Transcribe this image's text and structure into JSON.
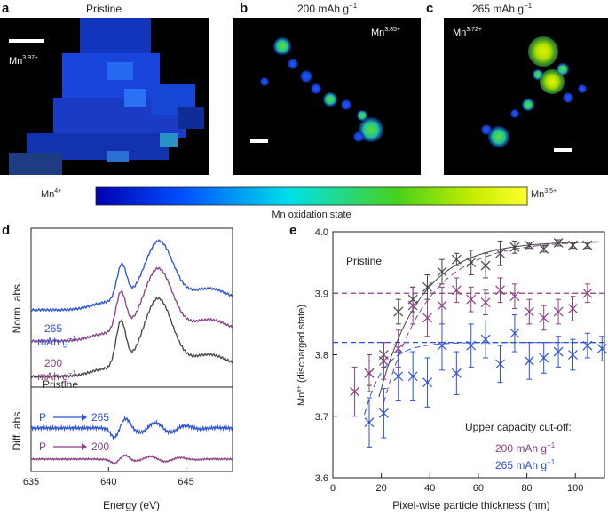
{
  "figure": {
    "panels": {
      "a": {
        "letter": "a",
        "title": "Pristine",
        "state": "Mn",
        "state_sup": "3.97+"
      },
      "b": {
        "letter": "b",
        "title_main": "200 mAh g",
        "title_sup": "−1",
        "state": "Mn",
        "state_sup": "3.85+"
      },
      "c": {
        "letter": "c",
        "title_main": "265 mAh g",
        "title_sup": "−1",
        "state": "Mn",
        "state_sup": "3.72+"
      }
    },
    "colorbar": {
      "left_main": "Mn",
      "left_sup": "4+",
      "right_main": "Mn",
      "right_sup": "3.5+",
      "label": "Mn oxidation state"
    },
    "colors": {
      "black": "#444444",
      "purple": "#8a3f86",
      "blue": "#2b50d8",
      "cmap": [
        "#0000b0",
        "#0050ff",
        "#00e0e8",
        "#48d21a",
        "#c8ee00",
        "#ffff30"
      ]
    }
  },
  "chart_data": [
    {
      "panel": "d",
      "type": "line",
      "letter": "d",
      "xlabel": "Energy (eV)",
      "xlim": [
        635,
        648
      ],
      "xticks": [
        "635",
        "640",
        "645"
      ],
      "top": {
        "ylabel": "Norm. abs.",
        "series": [
          {
            "name": "265 mAh g⁻¹",
            "name_line1": "265",
            "name_line2_main": "mAh g",
            "name_line2_sup": "−1",
            "color": "#2b50d8"
          },
          {
            "name": "200 mAh g⁻¹",
            "name_line1": "200",
            "name_line2_main": "mAh g",
            "name_line2_sup": "−1",
            "color": "#8a3f86"
          },
          {
            "name": "Pristine",
            "color": "#444444"
          }
        ]
      },
      "bottom": {
        "ylabel": "Diff. abs.",
        "series": [
          {
            "from": "P",
            "to": "265",
            "color": "#2b50d8"
          },
          {
            "from": "P",
            "to": "200",
            "color": "#8a3f86"
          }
        ]
      }
    },
    {
      "panel": "e",
      "type": "scatter",
      "letter": "e",
      "xlabel": "Pixel-wise particle thickness (nm)",
      "ylabel_main": "Mn",
      "ylabel_sup": "x+",
      "ylabel_tail": " (discharged state)",
      "xlim": [
        0,
        112
      ],
      "ylim": [
        3.6,
        4.0
      ],
      "xticks": [
        0,
        20,
        40,
        60,
        80,
        100
      ],
      "yticks": [
        3.6,
        3.7,
        3.8,
        3.9,
        4.0
      ],
      "ytick_labels": [
        "3.6",
        "3.7",
        "3.8",
        "3.9",
        "4.0"
      ],
      "legend_title": "Upper capacity cut-off:",
      "pristine_label": "Pristine",
      "hlines": [
        {
          "y": 3.9,
          "color": "#8a3f86"
        },
        {
          "y": 3.82,
          "color": "#2b50d8"
        }
      ],
      "series": [
        {
          "name": "Pristine",
          "color": "#444444",
          "x": [
            15,
            21,
            27,
            33,
            39,
            45,
            51,
            57,
            63,
            69,
            75,
            81,
            87,
            93,
            99,
            105
          ],
          "y": [
            3.77,
            3.8,
            3.87,
            3.89,
            3.91,
            3.935,
            3.955,
            3.95,
            3.945,
            3.965,
            3.975,
            3.978,
            3.972,
            3.982,
            3.978,
            3.978
          ],
          "err": [
            0.02,
            0.02,
            0.02,
            0.02,
            0.02,
            0.02,
            0.01,
            0.02,
            0.02,
            0.02,
            0.01,
            0.005,
            0.005,
            0.005,
            0.005,
            0.005
          ]
        },
        {
          "name": "200 mAh g⁻¹",
          "label_main": "200 mAh g",
          "label_sup": "−1",
          "color": "#8a3f86",
          "x": [
            9,
            15,
            21,
            27,
            33,
            39,
            45,
            51,
            57,
            63,
            69,
            75,
            81,
            87,
            93,
            99,
            105
          ],
          "y": [
            3.74,
            3.77,
            3.79,
            3.81,
            3.88,
            3.86,
            3.88,
            3.905,
            3.89,
            3.885,
            3.905,
            3.895,
            3.87,
            3.86,
            3.87,
            3.875,
            3.9
          ],
          "err": [
            0.04,
            0.03,
            0.03,
            0.03,
            0.03,
            0.03,
            0.03,
            0.02,
            0.02,
            0.02,
            0.02,
            0.02,
            0.02,
            0.02,
            0.02,
            0.02,
            0.015
          ]
        },
        {
          "name": "265 mAh g⁻¹",
          "label_main": "265 mAh g",
          "label_sup": "−1",
          "color": "#2b50d8",
          "x": [
            15,
            21,
            27,
            33,
            39,
            45,
            51,
            57,
            63,
            69,
            75,
            81,
            87,
            93,
            99,
            105,
            111
          ],
          "y": [
            3.69,
            3.705,
            3.765,
            3.765,
            3.755,
            3.815,
            3.77,
            3.815,
            3.825,
            3.785,
            3.835,
            3.79,
            3.795,
            3.805,
            3.8,
            3.815,
            3.81
          ],
          "err": [
            0.04,
            0.04,
            0.04,
            0.04,
            0.04,
            0.04,
            0.035,
            0.035,
            0.03,
            0.03,
            0.03,
            0.03,
            0.025,
            0.025,
            0.025,
            0.02,
            0.02
          ]
        }
      ]
    }
  ]
}
